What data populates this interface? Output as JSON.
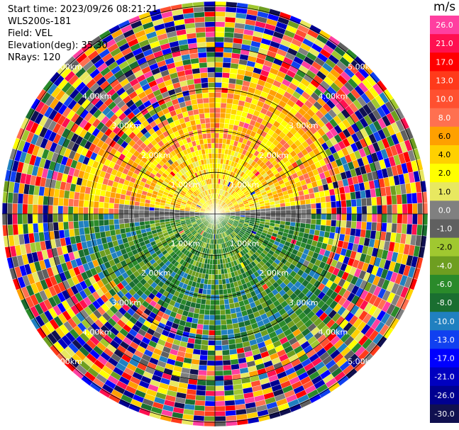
{
  "header": {
    "start_time": "Start time: 2023/09/26 08:21:21",
    "site": "WLS200s-181",
    "field": "Field: VEL",
    "elevation": "Elevation(deg): 35.30",
    "nrays": "NRays: 120"
  },
  "chart_data": {
    "type": "heatmap",
    "projection": "polar PPI",
    "field": "VEL",
    "units": "m/s",
    "range_rings_km": [
      1.0,
      2.0,
      3.0,
      4.0,
      5.0
    ],
    "ring_labels": [
      "1.00km",
      "2.00km",
      "3.00km",
      "4.00km",
      "5.00km"
    ],
    "colorbar": {
      "ticks": [
        "26.0",
        "21.0",
        "17.0",
        "13.0",
        "10.0",
        "8.0",
        "6.0",
        "4.0",
        "2.0",
        "1.0",
        "0.0",
        "-1.0",
        "-2.0",
        "-4.0",
        "-6.0",
        "-8.0",
        "-10.0",
        "-13.0",
        "-17.0",
        "-21.0",
        "-26.0",
        "-30.0"
      ],
      "colors": [
        "#ff3fa0",
        "#ff1050",
        "#ff0000",
        "#ff3a1a",
        "#ff5030",
        "#ff7050",
        "#ffa000",
        "#ffd000",
        "#ffff00",
        "#e8e860",
        "#808080",
        "#606060",
        "#a0c830",
        "#6e9e20",
        "#2a8a2a",
        "#1a6e30",
        "#2080c0",
        "#1040f0",
        "#0000ff",
        "#0000c0",
        "#000090",
        "#101050"
      ]
    },
    "velocity_pattern": {
      "near_north": "positive (yellow/orange)",
      "near_south": "negative (green)",
      "far_range": "noise"
    }
  }
}
